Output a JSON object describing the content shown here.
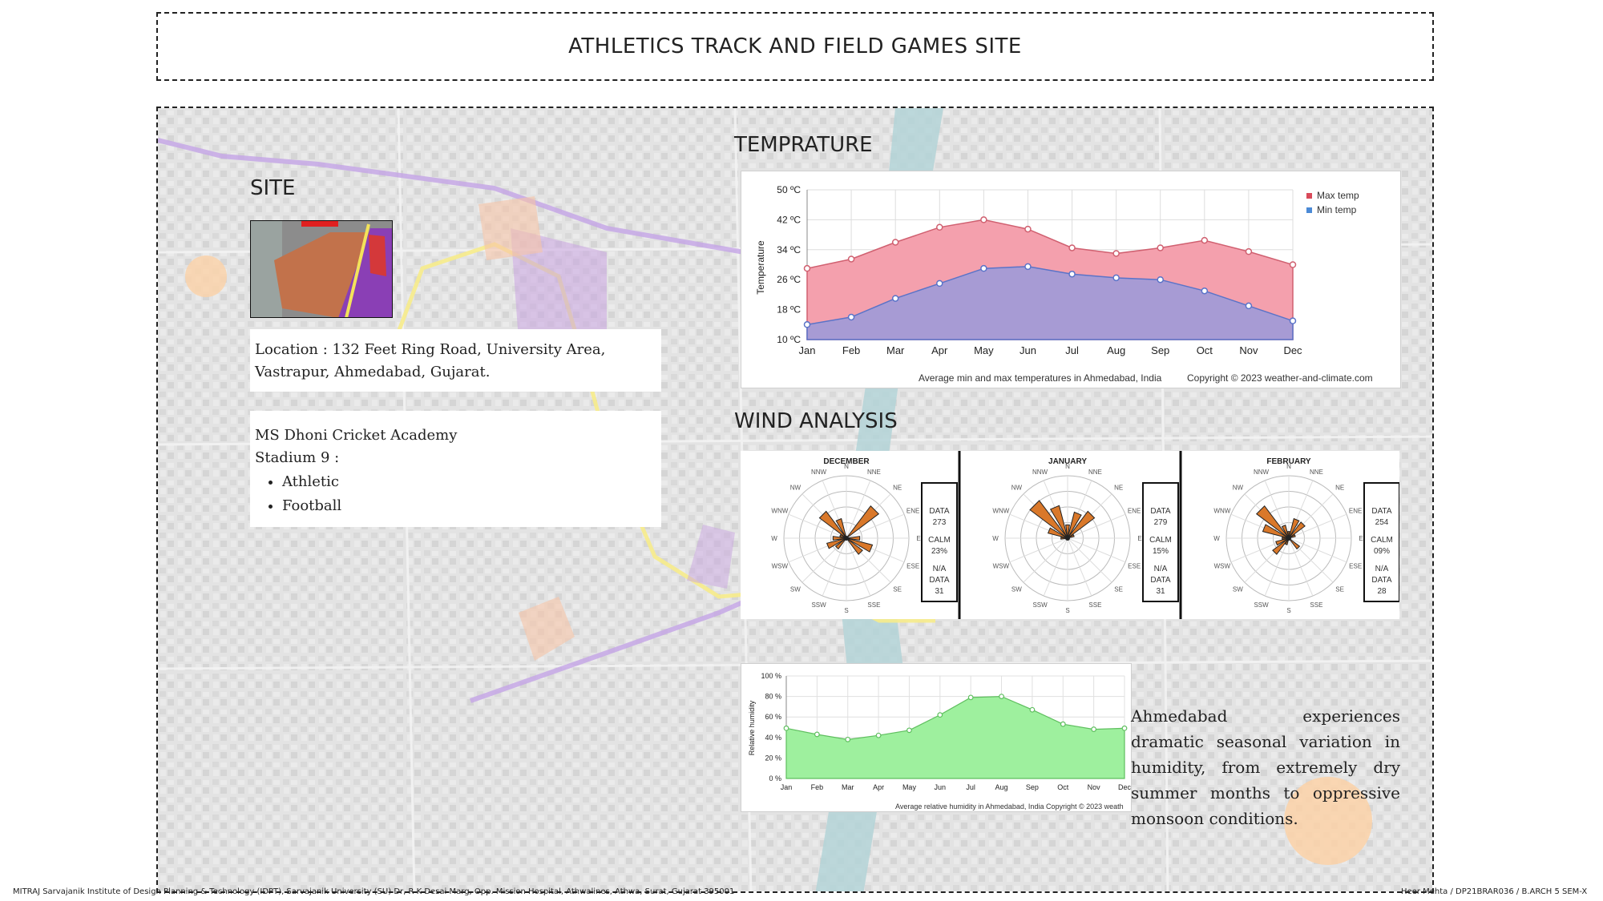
{
  "title": "ATHLETICS TRACK AND FIELD GAMES SITE",
  "site": {
    "heading": "SITE",
    "location": "Location : 132 Feet Ring Road, University Area, Vastrapur, Ahmedabad, Gujarat.",
    "facility": "MS Dhoni Cricket Academy",
    "stadium": "Stadium 9 :",
    "sports": [
      "Athletic",
      "Football"
    ]
  },
  "temperature": {
    "heading": "TEMPRATURE",
    "ylabel": "Temperature",
    "yticks": [
      "50 ºC",
      "42 ºC",
      "34 ºC",
      "26 ºC",
      "18 ºC",
      "10 ºC"
    ],
    "caption": "Average min and max temperatures in Ahmedabad, India",
    "copyright": "Copyright © 2023  weather-and-climate.com",
    "legend_max": "Max temp",
    "legend_min": "Min temp",
    "max_color": "#f4a0ad",
    "min_color": "#a79bd4"
  },
  "wind": {
    "heading": "WIND ANALYSIS",
    "months": [
      {
        "name": "DECEMBER",
        "data_label": "DATA",
        "data_value": "273",
        "calm_label": "CALM",
        "calm_value": "23%",
        "na_label": "N/A",
        "na_value": "31"
      },
      {
        "name": "JANUARY",
        "data_label": "DATA",
        "data_value": "279",
        "calm_label": "CALM",
        "calm_value": "15%",
        "na_label": "N/A",
        "na_value": "31"
      },
      {
        "name": "FEBRUARY",
        "data_label": "DATA",
        "data_value": "254",
        "calm_label": "CALM",
        "calm_value": "09%",
        "na_label": "N/A",
        "na_value": "28"
      }
    ],
    "dirs": [
      "N",
      "NNE",
      "NE",
      "ENE",
      "E",
      "ESE",
      "SE",
      "SSE",
      "S",
      "SSW",
      "SW",
      "WSW",
      "W",
      "WNW",
      "NW",
      "NNW"
    ]
  },
  "humidity": {
    "ylabel": "Relative humidity",
    "yticks": [
      "100 %",
      "80 %",
      "60 %",
      "40 %",
      "20 %",
      "0 %"
    ],
    "caption": "Average relative humidity in Ahmedabad, India  Copyright © 2023  weath",
    "fill_color": "#9ef09e",
    "description": "Ahmedabad experiences dramatic seasonal variation in humidity, from extremely dry summer months to oppressive monsoon conditions."
  },
  "chart_data": [
    {
      "type": "area",
      "categories": [
        "Jan",
        "Feb",
        "Mar",
        "Apr",
        "May",
        "Jun",
        "Jul",
        "Aug",
        "Sep",
        "Oct",
        "Nov",
        "Dec"
      ],
      "series": [
        {
          "name": "Max temp",
          "values": [
            29,
            31.5,
            36,
            40,
            42,
            39.5,
            34.5,
            33,
            34.5,
            36.5,
            33.5,
            30
          ]
        },
        {
          "name": "Min temp",
          "values": [
            14,
            16,
            21,
            25,
            29,
            29.5,
            27.5,
            26.5,
            26,
            23,
            19,
            15
          ]
        }
      ],
      "ylabel": "Temperature",
      "ylim": [
        10,
        50
      ],
      "legend": "top-right",
      "grid": true
    },
    {
      "type": "area",
      "categories": [
        "Jan",
        "Feb",
        "Mar",
        "Apr",
        "May",
        "Jun",
        "Jul",
        "Aug",
        "Sep",
        "Oct",
        "Nov",
        "Dec"
      ],
      "values": [
        49,
        43,
        38,
        42,
        47,
        62,
        79,
        80,
        67,
        53,
        48,
        49
      ],
      "ylabel": "Relative humidity",
      "ylim": [
        0,
        100
      ],
      "grid": true
    }
  ],
  "footer": {
    "institute": "MITRAJ Sarvajanik Institute of Design Planning & Technology (IDPT), Sarvajanik University (SU) Dr, R K Desai Marg, Opp. Mission Hospital, Athwalines, Athwa, Surat, Gujarat 395001",
    "credit": "Heer Mehta  /  DP21BRAR036  /  B.ARCH 5 SEM-X"
  }
}
